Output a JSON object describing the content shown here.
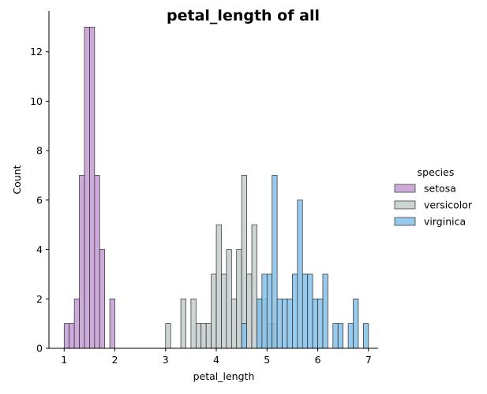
{
  "chart_data": {
    "type": "histogram",
    "title": "petal_length of all",
    "xlabel": "petal_length",
    "ylabel": "Count",
    "xlim": [
      0.7,
      7.19
    ],
    "ylim": [
      0,
      13.65
    ],
    "xticks": [
      1,
      2,
      3,
      4,
      5,
      6,
      7
    ],
    "yticks": [
      0,
      2,
      4,
      6,
      8,
      10,
      12
    ],
    "bin_width": 0.1,
    "grid": false,
    "legend": {
      "title": "species",
      "placement": "right"
    },
    "series": [
      {
        "name": "setosa",
        "color": "#c39bd3",
        "bars": [
          [
            1.0,
            1
          ],
          [
            1.1,
            1
          ],
          [
            1.2,
            2
          ],
          [
            1.3,
            7
          ],
          [
            1.4,
            13
          ],
          [
            1.5,
            13
          ],
          [
            1.6,
            7
          ],
          [
            1.7,
            4
          ],
          [
            1.9,
            2
          ]
        ]
      },
      {
        "name": "versicolor",
        "color": "#c3cccd",
        "bars": [
          [
            3.0,
            1
          ],
          [
            3.3,
            2
          ],
          [
            3.5,
            2
          ],
          [
            3.6,
            1
          ],
          [
            3.7,
            1
          ],
          [
            3.8,
            1
          ],
          [
            3.9,
            3
          ],
          [
            4.0,
            5
          ],
          [
            4.1,
            3
          ],
          [
            4.2,
            4
          ],
          [
            4.3,
            2
          ],
          [
            4.4,
            4
          ],
          [
            4.5,
            7
          ],
          [
            4.6,
            3
          ],
          [
            4.7,
            5
          ],
          [
            4.8,
            2
          ],
          [
            4.9,
            2
          ],
          [
            5.0,
            1
          ],
          [
            5.1,
            1
          ]
        ]
      },
      {
        "name": "virginica",
        "color": "#85c1e9",
        "bars": [
          [
            4.5,
            1
          ],
          [
            4.8,
            2
          ],
          [
            4.9,
            3
          ],
          [
            5.0,
            3
          ],
          [
            5.1,
            7
          ],
          [
            5.2,
            2
          ],
          [
            5.3,
            2
          ],
          [
            5.4,
            2
          ],
          [
            5.5,
            3
          ],
          [
            5.6,
            6
          ],
          [
            5.7,
            3
          ],
          [
            5.8,
            3
          ],
          [
            5.9,
            2
          ],
          [
            6.0,
            2
          ],
          [
            6.1,
            3
          ],
          [
            6.3,
            1
          ],
          [
            6.4,
            1
          ],
          [
            6.6,
            1
          ],
          [
            6.7,
            2
          ],
          [
            6.9,
            1
          ]
        ]
      }
    ]
  }
}
